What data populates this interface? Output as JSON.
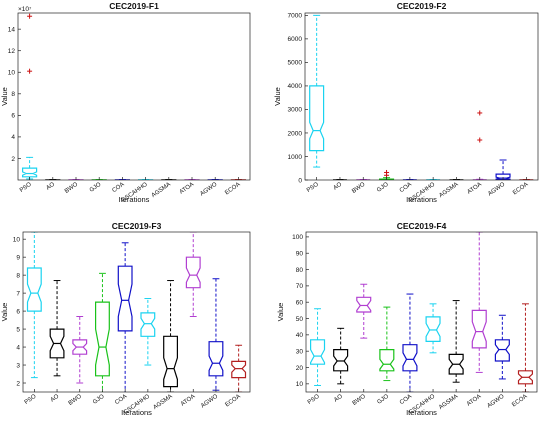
{
  "chart_data": [
    {
      "type": "boxplot",
      "title": "CEC2019-F1",
      "xlabel": "Iterations",
      "ylabel": "Value",
      "exponent_label": "×10⁷",
      "ylim": [
        0,
        15.5
      ],
      "yticks": [
        2,
        4,
        6,
        8,
        10,
        12,
        14
      ],
      "categories": [
        "PSO",
        "AO",
        "BWO",
        "GJO",
        "COA",
        "CSCAHHO",
        "AGSMA",
        "ATOA",
        "AGWO",
        "ECOA"
      ],
      "boxes": [
        {
          "whislo": 0.1,
          "q1": 0.3,
          "med": 0.6,
          "q3": 1.1,
          "whishi": 2.1,
          "notch": [
            0.45,
            0.75
          ],
          "outliers": [
            10.1,
            15.2
          ]
        },
        {
          "whislo": 0,
          "q1": 0,
          "med": 0.01,
          "q3": 0.02,
          "whishi": 0.04,
          "notch": [
            0.005,
            0.015
          ],
          "outliers": []
        },
        {
          "whislo": 0,
          "q1": 0,
          "med": 0.01,
          "q3": 0.02,
          "whishi": 0.04,
          "notch": [
            0.005,
            0.015
          ],
          "outliers": []
        },
        {
          "whislo": 0,
          "q1": 0,
          "med": 0.01,
          "q3": 0.02,
          "whishi": 0.04,
          "notch": [
            0.005,
            0.015
          ],
          "outliers": []
        },
        {
          "whislo": 0,
          "q1": 0,
          "med": 0.01,
          "q3": 0.02,
          "whishi": 0.04,
          "notch": [
            0.005,
            0.015
          ],
          "outliers": []
        },
        {
          "whislo": 0,
          "q1": 0,
          "med": 0.01,
          "q3": 0.02,
          "whishi": 0.04,
          "notch": [
            0.005,
            0.015
          ],
          "outliers": []
        },
        {
          "whislo": 0,
          "q1": 0,
          "med": 0.01,
          "q3": 0.02,
          "whishi": 0.04,
          "notch": [
            0.005,
            0.015
          ],
          "outliers": []
        },
        {
          "whislo": 0,
          "q1": 0,
          "med": 0.01,
          "q3": 0.02,
          "whishi": 0.04,
          "notch": [
            0.005,
            0.015
          ],
          "outliers": []
        },
        {
          "whislo": 0,
          "q1": 0,
          "med": 0.01,
          "q3": 0.02,
          "whishi": 0.04,
          "notch": [
            0.005,
            0.015
          ],
          "outliers": []
        },
        {
          "whislo": 0,
          "q1": 0,
          "med": 0.01,
          "q3": 0.02,
          "whishi": 0.04,
          "notch": [
            0.005,
            0.015
          ],
          "outliers": []
        }
      ]
    },
    {
      "type": "boxplot",
      "title": "CEC2019-F2",
      "xlabel": "Iterations",
      "ylabel": "Value",
      "ylim": [
        0,
        7100
      ],
      "yticks": [
        0,
        1000,
        2000,
        3000,
        4000,
        5000,
        6000,
        7000
      ],
      "categories": [
        "PSO",
        "AO",
        "BWO",
        "GJO",
        "COA",
        "CSCAHHO",
        "AGSMA",
        "ATOA",
        "AGWO",
        "ECOA"
      ],
      "boxes": [
        {
          "whislo": 550,
          "q1": 1250,
          "med": 2100,
          "q3": 4000,
          "whishi": 7000,
          "notch": [
            1750,
            2450
          ],
          "outliers": []
        },
        {
          "whislo": 0,
          "q1": 0,
          "med": 5,
          "q3": 10,
          "whishi": 20,
          "notch": [
            2,
            8
          ],
          "outliers": []
        },
        {
          "whislo": 0,
          "q1": 0,
          "med": 5,
          "q3": 10,
          "whishi": 20,
          "notch": [
            2,
            8
          ],
          "outliers": []
        },
        {
          "whislo": 0,
          "q1": 0,
          "med": 10,
          "q3": 40,
          "whishi": 100,
          "notch": [
            5,
            15
          ],
          "outliers": [
            200,
            320
          ]
        },
        {
          "whislo": 0,
          "q1": 0,
          "med": 5,
          "q3": 10,
          "whishi": 20,
          "notch": [
            2,
            8
          ],
          "outliers": []
        },
        {
          "whislo": 0,
          "q1": 0,
          "med": 5,
          "q3": 10,
          "whishi": 20,
          "notch": [
            2,
            8
          ],
          "outliers": []
        },
        {
          "whislo": 0,
          "q1": 0,
          "med": 5,
          "q3": 10,
          "whishi": 20,
          "notch": [
            2,
            8
          ],
          "outliers": []
        },
        {
          "whislo": 0,
          "q1": 0,
          "med": 5,
          "q3": 10,
          "whishi": 30,
          "notch": [
            2,
            8
          ],
          "outliers": [
            1700,
            2850
          ]
        },
        {
          "whislo": 0,
          "q1": 20,
          "med": 80,
          "q3": 250,
          "whishi": 850,
          "notch": [
            40,
            120
          ],
          "outliers": []
        },
        {
          "whislo": 0,
          "q1": 0,
          "med": 5,
          "q3": 10,
          "whishi": 20,
          "notch": [
            2,
            8
          ],
          "outliers": []
        }
      ]
    },
    {
      "type": "boxplot",
      "title": "CEC2019-F3",
      "xlabel": "Iterations",
      "ylabel": "Value",
      "ylim": [
        1.5,
        10.4
      ],
      "yticks": [
        2,
        3,
        4,
        5,
        6,
        7,
        8,
        9,
        10
      ],
      "categories": [
        "PSO",
        "AO",
        "BWO",
        "GJO",
        "COA",
        "CSCAHHO",
        "AGSMA",
        "ATOA",
        "AGWO",
        "ECOA"
      ],
      "boxes": [
        {
          "whislo": 2.3,
          "q1": 6.0,
          "med": 7.0,
          "q3": 8.4,
          "whishi": 10.4,
          "notch": [
            6.5,
            7.5
          ],
          "outliers": []
        },
        {
          "whislo": 2.4,
          "q1": 3.4,
          "med": 4.2,
          "q3": 5.0,
          "whishi": 7.7,
          "notch": [
            3.8,
            4.6
          ],
          "outliers": []
        },
        {
          "whislo": 2.0,
          "q1": 3.6,
          "med": 4.0,
          "q3": 4.4,
          "whishi": 5.7,
          "notch": [
            3.8,
            4.2
          ],
          "outliers": []
        },
        {
          "whislo": 1.2,
          "q1": 2.4,
          "med": 4.0,
          "q3": 6.5,
          "whishi": 8.1,
          "notch": [
            3.0,
            5.0
          ],
          "outliers": []
        },
        {
          "whislo": 1.4,
          "q1": 4.9,
          "med": 6.6,
          "q3": 8.5,
          "whishi": 9.8,
          "notch": [
            5.7,
            7.5
          ],
          "outliers": []
        },
        {
          "whislo": 3.0,
          "q1": 4.6,
          "med": 5.3,
          "q3": 5.9,
          "whishi": 6.7,
          "notch": [
            5.0,
            5.6
          ],
          "outliers": []
        },
        {
          "whislo": 1.5,
          "q1": 1.8,
          "med": 2.8,
          "q3": 4.6,
          "whishi": 7.7,
          "notch": [
            2.2,
            3.4
          ],
          "outliers": []
        },
        {
          "whislo": 5.7,
          "q1": 7.3,
          "med": 8.0,
          "q3": 9.0,
          "whishi": 10.4,
          "notch": [
            7.6,
            8.4
          ],
          "outliers": []
        },
        {
          "whislo": 1.6,
          "q1": 2.4,
          "med": 3.1,
          "q3": 4.3,
          "whishi": 7.8,
          "notch": [
            2.7,
            3.5
          ],
          "outliers": []
        },
        {
          "whislo": 1.5,
          "q1": 2.3,
          "med": 2.8,
          "q3": 3.2,
          "whishi": 4.1,
          "notch": [
            2.6,
            3.0
          ],
          "outliers": []
        }
      ]
    },
    {
      "type": "boxplot",
      "title": "CEC2019-F4",
      "xlabel": "Iterations",
      "ylabel": "Value",
      "ylim": [
        5,
        103
      ],
      "yticks": [
        10,
        20,
        30,
        40,
        50,
        60,
        70,
        80,
        90,
        100
      ],
      "categories": [
        "PSO",
        "AO",
        "BWO",
        "GJO",
        "COA",
        "CSCAHHO",
        "AGSMA",
        "ATOA",
        "AGWO",
        "ECOA"
      ],
      "boxes": [
        {
          "whislo": 9,
          "q1": 22,
          "med": 27,
          "q3": 37,
          "whishi": 56,
          "notch": [
            23,
            31
          ],
          "outliers": []
        },
        {
          "whislo": 10,
          "q1": 18,
          "med": 24,
          "q3": 31,
          "whishi": 44,
          "notch": [
            21,
            27
          ],
          "outliers": []
        },
        {
          "whislo": 38,
          "q1": 54,
          "med": 58,
          "q3": 63,
          "whishi": 71,
          "notch": [
            55,
            61
          ],
          "outliers": []
        },
        {
          "whislo": 12,
          "q1": 18,
          "med": 22,
          "q3": 31,
          "whishi": 57,
          "notch": [
            19,
            25
          ],
          "outliers": []
        },
        {
          "whislo": 5,
          "q1": 18,
          "med": 25,
          "q3": 34,
          "whishi": 65,
          "notch": [
            21,
            29
          ],
          "outliers": []
        },
        {
          "whislo": 29,
          "q1": 36,
          "med": 43,
          "q3": 51,
          "whishi": 59,
          "notch": [
            39,
            47
          ],
          "outliers": []
        },
        {
          "whislo": 11,
          "q1": 16,
          "med": 22,
          "q3": 28,
          "whishi": 61,
          "notch": [
            19,
            25
          ],
          "outliers": []
        },
        {
          "whislo": 17,
          "q1": 32,
          "med": 42,
          "q3": 55,
          "whishi": 103,
          "notch": [
            36,
            48
          ],
          "outliers": []
        },
        {
          "whislo": 13,
          "q1": 24,
          "med": 31,
          "q3": 37,
          "whishi": 52,
          "notch": [
            28,
            34
          ],
          "outliers": []
        },
        {
          "whislo": 5,
          "q1": 10,
          "med": 14,
          "q3": 18,
          "whishi": 59,
          "notch": [
            12,
            16
          ],
          "outliers": []
        }
      ]
    }
  ],
  "box_colors": [
    "#1ad3f0",
    "#000000",
    "#b13fd1",
    "#19c219",
    "#1010c8",
    "#1ad3f0",
    "#000000",
    "#b13fd1",
    "#1010c8",
    "#b31f1f"
  ],
  "outlier_color": "#cc1010"
}
